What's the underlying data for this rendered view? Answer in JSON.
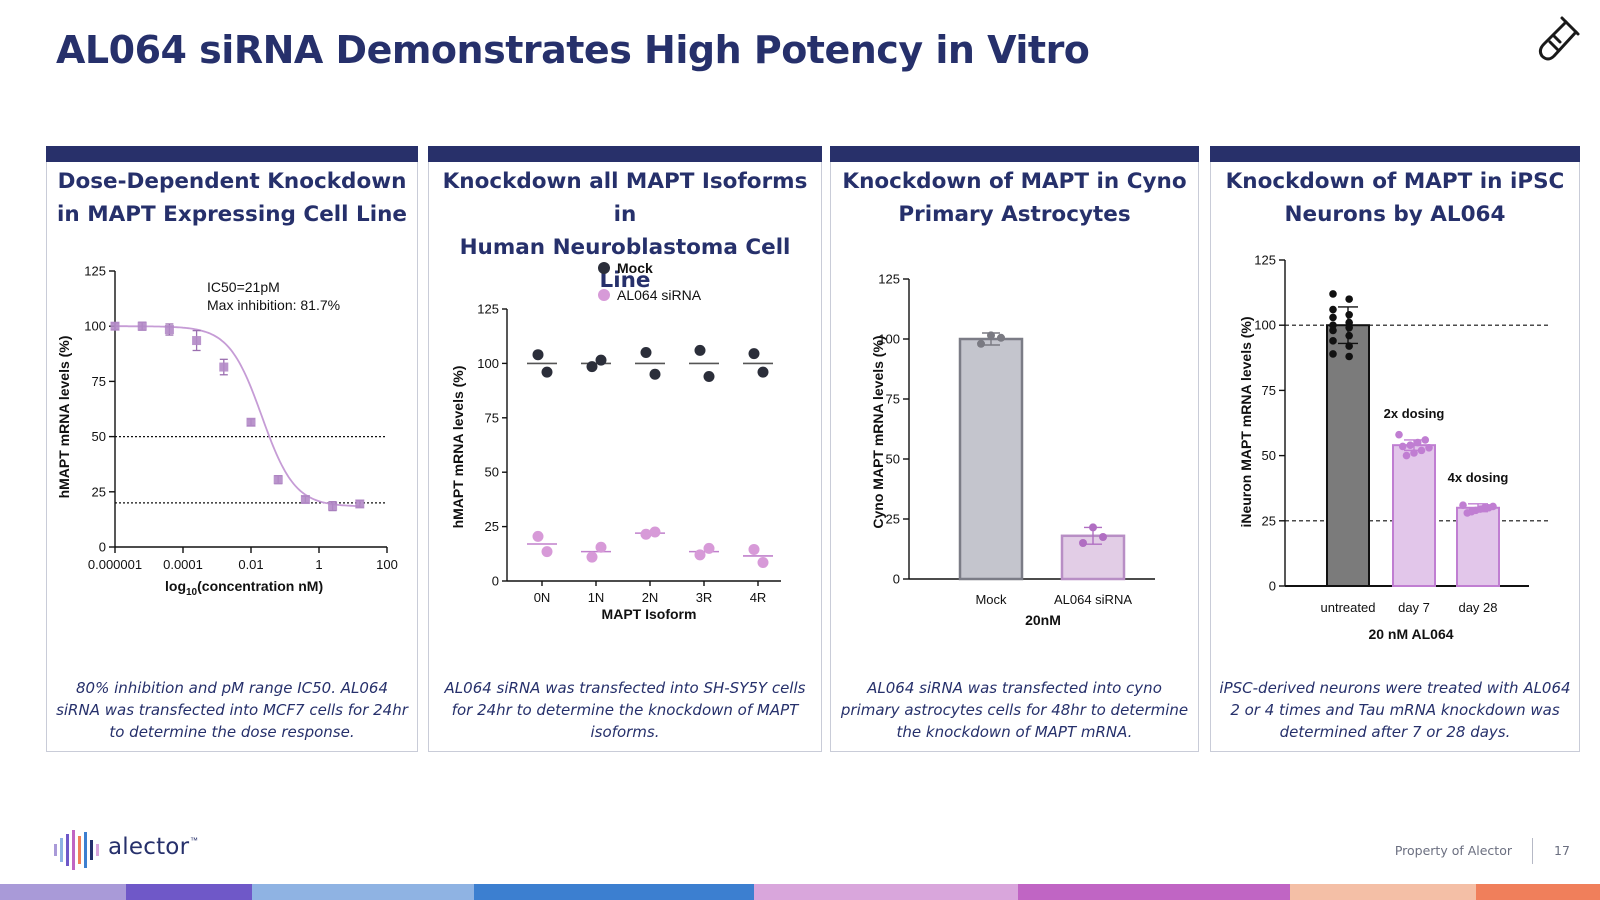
{
  "slide": {
    "title": "AL064 siRNA Demonstrates High Potency in Vitro",
    "footer_property": "Property of Alector",
    "page_number": "17",
    "logo_text": "alector",
    "logo_tm": "™",
    "header_icon": "test-tube-icon",
    "stripe_colors": [
      "#a99ad8",
      "#6f58c8",
      "#8fb3e3",
      "#3c7fd0",
      "#d9a6dc",
      "#c065c4",
      "#f4bfa6",
      "#f07f5b"
    ],
    "accent_color": "#28306a"
  },
  "panels": [
    {
      "title_line1": "Dose-Dependent Knockdown",
      "title_line2": "in MAPT Expressing Cell Line",
      "caption": "80% inhibition and pM range IC50. AL064 siRNA was transfected into MCF7 cells for 24hr to determine the dose response."
    },
    {
      "title_line1": "Knockdown all MAPT Isoforms in",
      "title_line2": "Human Neuroblastoma Cell Line",
      "caption": "AL064 siRNA was transfected into SH-SY5Y cells for 24hr to determine the knockdown of MAPT isoforms."
    },
    {
      "title_line1": "Knockdown of MAPT in Cyno",
      "title_line2": "Primary Astrocytes",
      "caption": "AL064 siRNA was transfected into cyno primary astrocytes cells for 48hr to determine the knockdown of MAPT mRNA."
    },
    {
      "title_line1": "Knockdown of MAPT in iPSC",
      "title_line2": "Neurons by AL064",
      "caption": "iPSC-derived neurons were treated with AL064 2 or 4 times and Tau mRNA knockdown was determined after 7 or 28 days."
    }
  ],
  "chart_data": [
    {
      "type": "scatter",
      "scale_x": "log",
      "ylabel": "hMAPT mRNA levels (%)",
      "xlabel_prefix": "log",
      "xlabel_sub": "10",
      "xlabel_suffix": "(concentration nM)",
      "ylim": [
        0,
        125
      ],
      "yticks": [
        0,
        25,
        50,
        75,
        100,
        125
      ],
      "xlim_log10": [
        -6,
        2
      ],
      "xticks_log10": [
        -6,
        -4,
        -2,
        0,
        2
      ],
      "xtick_labels": [
        "0.000001",
        "0.0001",
        "0.01",
        "1",
        "100"
      ],
      "annotation_line1": "IC50=21pM",
      "annotation_line2": "Max inhibition: 81.7%",
      "reference_lines": [
        50,
        20
      ],
      "points_log10x": [
        -6,
        -5.2,
        -4.4,
        -3.6,
        -2.8,
        -2,
        -1.2,
        -0.4,
        0.4,
        1.2
      ],
      "points_y": [
        100,
        100,
        98.5,
        93.5,
        81.5,
        56.5,
        30.5,
        21.5,
        18.5,
        19.5
      ],
      "errors": [
        1.5,
        1.8,
        2.5,
        4.5,
        3.5,
        1.5,
        1.8,
        1.5,
        2,
        1.5
      ],
      "fit": {
        "top": 100,
        "bottom": 18.3,
        "log_ic50": -1.68,
        "hill": 0.9
      },
      "color": "#c69cd6"
    },
    {
      "type": "scatter",
      "ylabel": "hMAPT mRNA levels (%)",
      "xlabel": "MAPT Isoform",
      "ylim": [
        0,
        125
      ],
      "yticks": [
        0,
        25,
        50,
        75,
        100,
        125
      ],
      "categories": [
        "0N",
        "1N",
        "2N",
        "3R",
        "4R"
      ],
      "series": [
        {
          "name": "Mock",
          "color": "#2b2e3a",
          "points": [
            [
              104,
              96
            ],
            [
              98.5,
              101.5
            ],
            [
              105,
              95
            ],
            [
              106,
              94
            ],
            [
              104.5,
              96
            ]
          ],
          "means": [
            100,
            100,
            100,
            100,
            100
          ]
        },
        {
          "name": "AL064 siRNA",
          "color": "#d79ad8",
          "points": [
            [
              20.5,
              13.5
            ],
            [
              11,
              15.5
            ],
            [
              21.5,
              22.5
            ],
            [
              12,
              15
            ],
            [
              14.5,
              8.5
            ]
          ],
          "means": [
            17,
            13.5,
            22,
            13.5,
            11.5
          ]
        }
      ]
    },
    {
      "type": "bar",
      "ylabel": "Cyno MAPT mRNA levels (%)",
      "xlabel": "20nM",
      "ylim": [
        0,
        125
      ],
      "yticks": [
        0,
        25,
        50,
        75,
        100,
        125
      ],
      "categories": [
        "Mock",
        "AL064 siRNA"
      ],
      "category_colors": [
        "#111111",
        "#d79ad8"
      ],
      "values": [
        100,
        18
      ],
      "errors": [
        2.5,
        3.5
      ],
      "points": [
        [
          98,
          101.5,
          100.5
        ],
        [
          15,
          21.5,
          17.5
        ]
      ],
      "bar_fills": [
        "#c4c5cd",
        "#e2cde6"
      ],
      "bar_edges": [
        "#7b7c86",
        "#b88ec5"
      ],
      "point_colors": [
        "#7a7a82",
        "#b06ec2"
      ]
    },
    {
      "type": "bar",
      "ylabel": "iNeuron MAPT mRNA levels (%)",
      "xlabel": "20 nM AL064",
      "ylim": [
        0,
        125
      ],
      "yticks": [
        0,
        25,
        50,
        75,
        100,
        125
      ],
      "categories": [
        "untreated",
        "day 7",
        "day 28"
      ],
      "values": [
        100,
        54,
        30
      ],
      "errors": [
        7,
        2,
        1.5
      ],
      "bar_labels": [
        "",
        "2x dosing",
        "4x dosing"
      ],
      "reference_lines": [
        100,
        25
      ],
      "points": [
        [
          112,
          110,
          106,
          104,
          103,
          101,
          100,
          99,
          98,
          96,
          94,
          92,
          89,
          88
        ],
        [
          58,
          56,
          55,
          54,
          53.5,
          53,
          52,
          51,
          50
        ],
        [
          31,
          30.5,
          30,
          30,
          29.5,
          29,
          28.5,
          28
        ]
      ],
      "bar_fills": [
        "#7b7b7b",
        "#e2c6ea",
        "#e2c6ea"
      ],
      "bar_edges": [
        "#111111",
        "#c07ed2",
        "#c07ed2"
      ],
      "point_colors": [
        "#111111",
        "#c07ed2",
        "#c07ed2"
      ]
    }
  ]
}
